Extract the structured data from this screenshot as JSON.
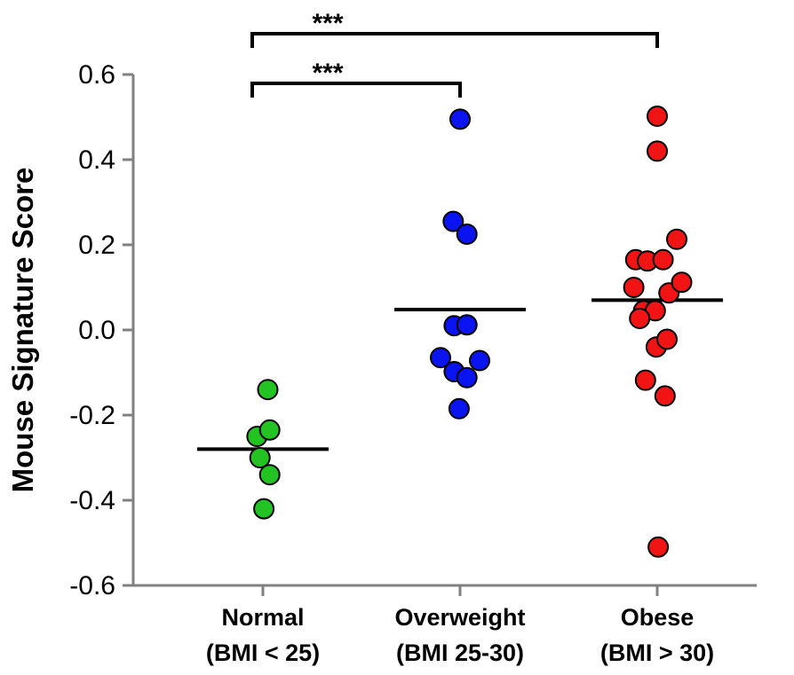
{
  "chart_data": {
    "type": "scatter",
    "ylabel": "Mouse Signature Score",
    "ylim": [
      -0.6,
      0.6
    ],
    "yticks": [
      0.6,
      0.4,
      0.2,
      0.0,
      -0.2,
      -0.4,
      -0.6
    ],
    "ytick_labels": [
      "0.6",
      "0.4",
      "0.2",
      "0.0",
      "-0.2",
      "-0.4",
      "-0.6"
    ],
    "grid": false,
    "groups": [
      {
        "line1": "Normal",
        "line2": "(BMI < 25)",
        "color": "#22c322",
        "mean": -0.28,
        "points": [
          {
            "offset": -0.06,
            "y": -0.25
          },
          {
            "offset": 0.05,
            "y": -0.14
          },
          {
            "offset": -0.03,
            "y": -0.3
          },
          {
            "offset": 0.07,
            "y": -0.235
          },
          {
            "offset": 0.07,
            "y": -0.34
          },
          {
            "offset": 0.01,
            "y": -0.42
          }
        ]
      },
      {
        "line1": "Overweight",
        "line2": "(BMI 25-30)",
        "color": "#0a14f0",
        "mean": 0.048,
        "points": [
          {
            "offset": 0.0,
            "y": 0.495
          },
          {
            "offset": -0.07,
            "y": 0.255
          },
          {
            "offset": 0.07,
            "y": 0.225
          },
          {
            "offset": -0.06,
            "y": 0.01
          },
          {
            "offset": 0.07,
            "y": 0.012
          },
          {
            "offset": -0.2,
            "y": -0.065
          },
          {
            "offset": -0.06,
            "y": -0.098
          },
          {
            "offset": 0.07,
            "y": -0.112
          },
          {
            "offset": 0.2,
            "y": -0.072
          },
          {
            "offset": -0.01,
            "y": -0.185
          }
        ]
      },
      {
        "line1": "Obese",
        "line2": "(BMI > 30)",
        "color": "#f01414",
        "mean": 0.07,
        "points": [
          {
            "offset": 0.0,
            "y": 0.502
          },
          {
            "offset": 0.0,
            "y": 0.42
          },
          {
            "offset": -0.22,
            "y": 0.165
          },
          {
            "offset": -0.1,
            "y": 0.162
          },
          {
            "offset": 0.06,
            "y": 0.165
          },
          {
            "offset": 0.2,
            "y": 0.213
          },
          {
            "offset": -0.24,
            "y": 0.1
          },
          {
            "offset": 0.12,
            "y": 0.087
          },
          {
            "offset": 0.25,
            "y": 0.112
          },
          {
            "offset": -0.14,
            "y": 0.045
          },
          {
            "offset": -0.02,
            "y": 0.045
          },
          {
            "offset": -0.18,
            "y": 0.027
          },
          {
            "offset": -0.01,
            "y": -0.04
          },
          {
            "offset": 0.1,
            "y": -0.022
          },
          {
            "offset": -0.12,
            "y": -0.118
          },
          {
            "offset": 0.08,
            "y": -0.155
          },
          {
            "offset": 0.01,
            "y": -0.51
          }
        ]
      }
    ],
    "significance": [
      {
        "from": 0,
        "to": 2,
        "label": "***"
      },
      {
        "from": 0,
        "to": 1,
        "label": "***"
      }
    ]
  }
}
